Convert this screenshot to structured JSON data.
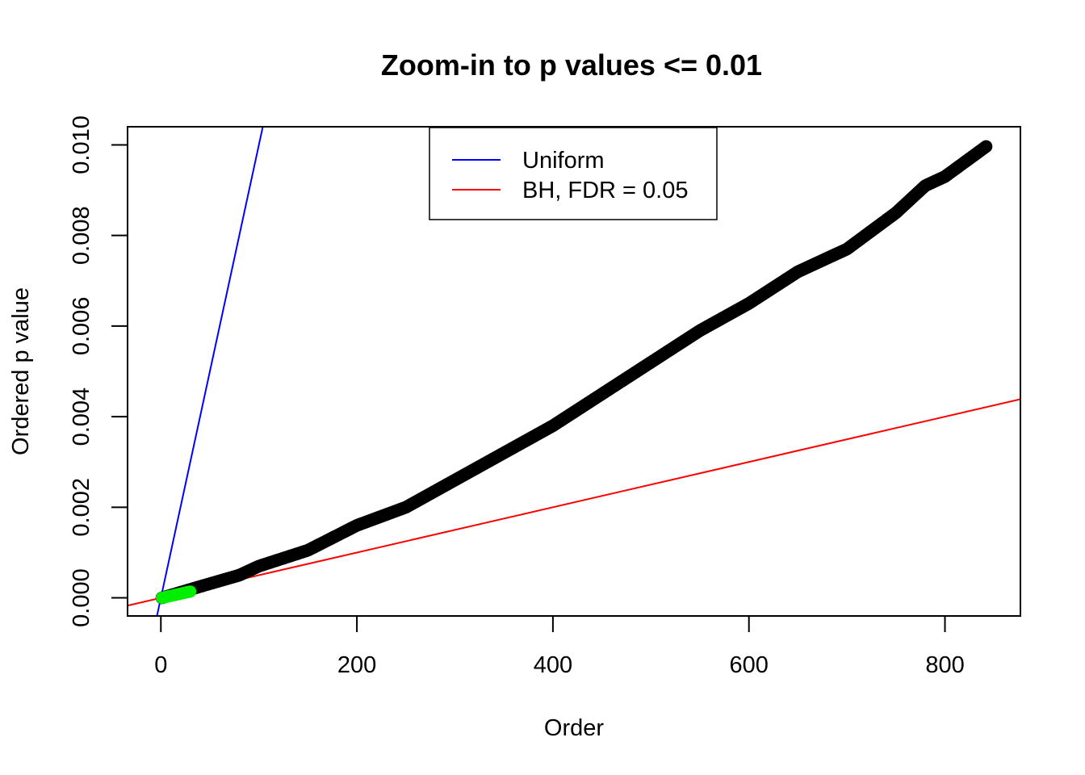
{
  "chart_data": {
    "type": "scatter",
    "title": "Zoom-in to p values <= 0.01",
    "xlabel": "Order",
    "ylabel": "Ordered p value",
    "xlim": [
      -34,
      877
    ],
    "ylim": [
      -0.0004,
      0.0104
    ],
    "x_ticks": [
      0,
      200,
      400,
      600,
      800
    ],
    "x_tick_labels": [
      "0",
      "200",
      "400",
      "600",
      "800"
    ],
    "y_ticks": [
      0.0,
      0.002,
      0.004,
      0.006,
      0.008,
      0.01
    ],
    "y_tick_labels": [
      "0.000",
      "0.002",
      "0.004",
      "0.006",
      "0.008",
      "0.010"
    ],
    "grid": false,
    "legend": {
      "position": "top-center",
      "entries": [
        {
          "label": "Uniform",
          "color": "#0000ff"
        },
        {
          "label": "BH, FDR = 0.05",
          "color": "#ff0000"
        }
      ]
    },
    "lines": [
      {
        "name": "Uniform",
        "color": "#0000ff",
        "intercept": 0,
        "slope": 0.0001
      },
      {
        "name": "BH, FDR = 0.05",
        "color": "#ff0000",
        "intercept": 0,
        "slope": 5e-06
      }
    ],
    "series": [
      {
        "color": "#000000",
        "marker": "open-circle",
        "n_points": 842,
        "curve_x": [
          1,
          40,
          80,
          100,
          150,
          200,
          250,
          300,
          350,
          400,
          450,
          500,
          550,
          600,
          650,
          700,
          750,
          780,
          800,
          843
        ],
        "curve_y": [
          0.0,
          0.00025,
          0.0005,
          0.0007,
          0.00105,
          0.0016,
          0.002,
          0.0026,
          0.0032,
          0.0038,
          0.0045,
          0.0052,
          0.0059,
          0.0065,
          0.0072,
          0.0077,
          0.0085,
          0.0091,
          0.0093,
          0.00998
        ]
      },
      {
        "color": "#00ee00",
        "marker": "filled-circle",
        "n_points": 30,
        "curve_x": [
          1,
          30
        ],
        "curve_y": [
          0.0,
          0.00014
        ]
      }
    ]
  }
}
